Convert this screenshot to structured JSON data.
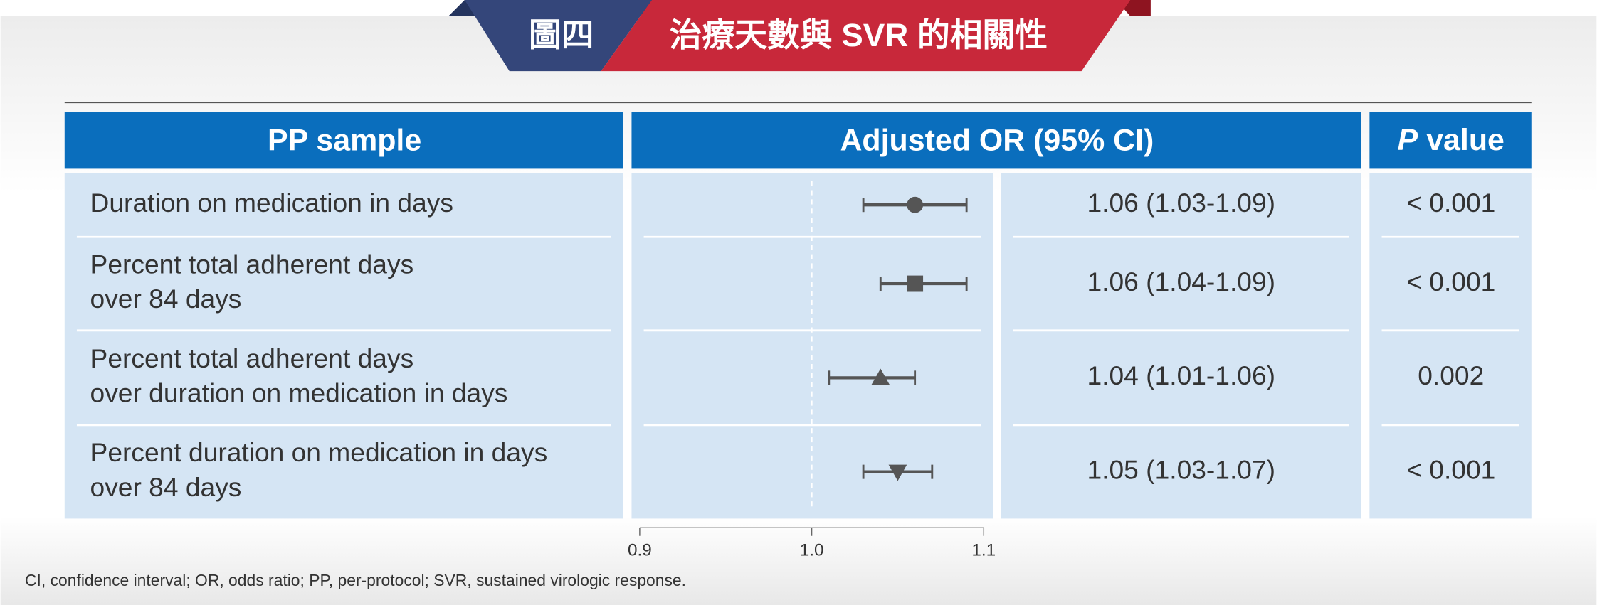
{
  "banner": {
    "label": "圖四",
    "title": "治療天數與 SVR 的相關性"
  },
  "table": {
    "headers": [
      "PP sample",
      "Adjusted OR (95% CI)"
    ],
    "p_header": {
      "italic": "P",
      "rest": " value"
    },
    "rows": [
      {
        "label": [
          "Duration on medication in days"
        ],
        "or": 1.06,
        "ci": [
          1.03,
          1.09
        ],
        "or_label": "1.06 (1.03-1.09)",
        "marker": "circle",
        "p_value": "< 0.001"
      },
      {
        "label": [
          "Percent total adherent days",
          "over 84 days"
        ],
        "or": 1.06,
        "ci": [
          1.04,
          1.09
        ],
        "or_label": "1.06 (1.04-1.09)",
        "marker": "square",
        "p_value": "< 0.001"
      },
      {
        "label": [
          "Percent total adherent days",
          "over duration on medication in days"
        ],
        "or": 1.04,
        "ci": [
          1.01,
          1.06
        ],
        "or_label": "1.04 (1.01-1.06)",
        "marker": "triangle",
        "p_value": "0.002"
      },
      {
        "label": [
          "Percent duration on medication in days",
          "over 84 days"
        ],
        "or": 1.05,
        "ci": [
          1.03,
          1.07
        ],
        "or_label": "1.05 (1.03-1.07)",
        "marker": "triangle-down",
        "p_value": "< 0.001"
      }
    ]
  },
  "forest_axis": {
    "xlim": [
      0.9,
      1.1
    ],
    "xticks": [
      0.9,
      {
        "value": 1,
        "label": "1.0"
      },
      1.1
    ],
    "reference": 1,
    "color": "#555555"
  },
  "footnote": "CI, confidence interval; OR, odds ratio; PP, per-protocol; SVR, sustained virologic response."
}
